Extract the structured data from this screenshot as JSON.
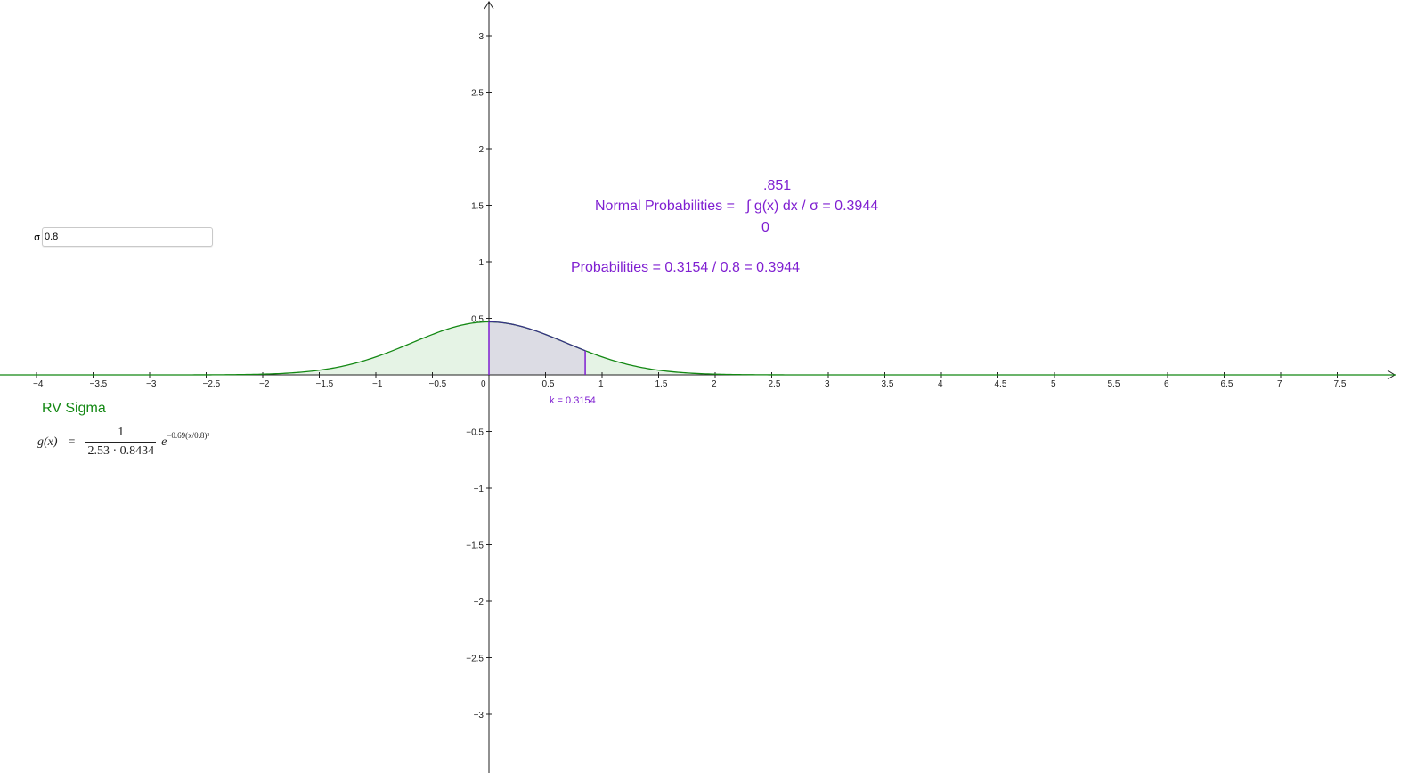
{
  "input": {
    "label": "σ",
    "value": "0.8"
  },
  "annotations": {
    "normal_prob_label": "Normal Probabilities =",
    "integral_upper": ".851",
    "integral_expr": "∫ g(x) dx / σ = 0.3944",
    "integral_lower": "0",
    "probabilities_text": "Probabilities = 0.3154 / 0.8 = 0.3944",
    "k_text": "k = 0.3154",
    "rv_title": "RV Sigma"
  },
  "formula": {
    "lhs": "g(x)",
    "equals": "=",
    "numerator": "1",
    "denominator": "2.53 · 0.8434",
    "base": "e",
    "exponent": "−0.69(x/0.8)²"
  },
  "axes": {
    "x_ticks": [
      "−4",
      "−3.5",
      "−3",
      "−2.5",
      "−2",
      "−1.5",
      "−1",
      "−0.5",
      "0",
      "0.5",
      "1",
      "1.5",
      "2",
      "2.5",
      "3",
      "3.5",
      "4",
      "4.5",
      "5",
      "5.5",
      "6",
      "6.5",
      "7",
      "7.5"
    ],
    "y_ticks": [
      "3",
      "2.5",
      "2",
      "1.5",
      "1",
      "0.5",
      "−0.5",
      "−1",
      "−1.5",
      "−2",
      "−2.5",
      "−3"
    ]
  },
  "curve": {
    "sigma": 0.8,
    "coef": 0.69,
    "denominator_value": 2.1338,
    "shade_from": 0,
    "shade_to": 0.851
  },
  "colors": {
    "curve": "#138813",
    "curve_fill": "#e5f3e5",
    "shade": "#dcdce4",
    "purple": "#7f1fd1",
    "axis": "#222222"
  }
}
